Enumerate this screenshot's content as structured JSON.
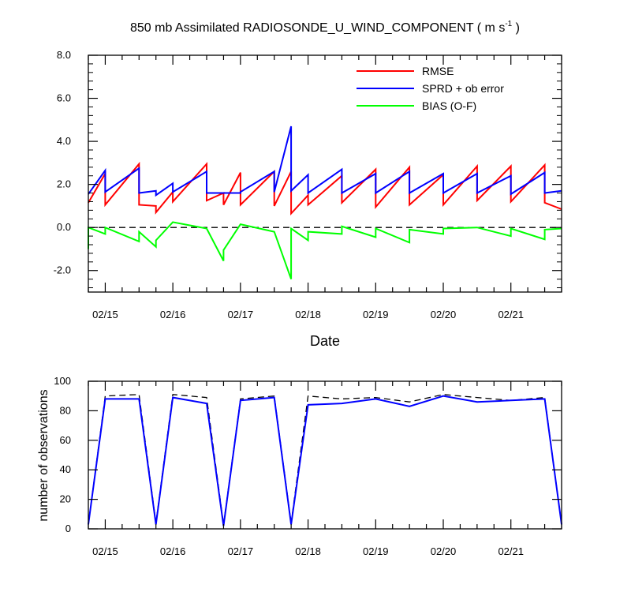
{
  "chart_data": [
    {
      "type": "line",
      "title": "850 mb Assimilated RADIOSONDE_U_WIND_COMPONENT ( m s",
      "title_sup": "-1",
      "title_end": " )",
      "xlabel": "Date",
      "ylabel": "",
      "ylim": [
        -3.0,
        8.0
      ],
      "xlim": [
        0,
        28
      ],
      "yticks": [
        8.0,
        6.0,
        4.0,
        2.0,
        0.0,
        -2.0
      ],
      "ytick_labels": [
        "8.0",
        "6.0",
        "4.0",
        "2.0",
        "0.0",
        "-2.0"
      ],
      "xticks": [
        1,
        5,
        9,
        13,
        17,
        21,
        25
      ],
      "xtick_labels": [
        "02/15",
        "02/16",
        "02/17",
        "02/18",
        "02/19",
        "02/20",
        "02/21"
      ],
      "legend_position": "top-right",
      "zero_line": "dashed",
      "series": [
        {
          "name": "RMSE",
          "color": "#ff0000",
          "x": [
            0,
            1,
            1,
            3,
            3,
            4,
            4,
            5,
            5,
            7,
            7,
            8,
            8,
            9,
            9,
            11,
            11,
            12,
            12,
            13,
            13,
            15,
            15,
            17,
            17,
            19,
            19,
            21,
            21,
            23,
            23,
            25,
            25,
            27,
            27,
            28
          ],
          "y": [
            1.15,
            2.5,
            1.05,
            2.95,
            1.05,
            1.0,
            0.7,
            1.65,
            1.2,
            2.95,
            1.25,
            1.6,
            1.05,
            2.55,
            1.05,
            2.6,
            1.0,
            2.6,
            0.65,
            1.5,
            1.05,
            2.4,
            1.15,
            2.7,
            0.95,
            2.8,
            1.05,
            2.45,
            1.05,
            2.85,
            1.25,
            2.85,
            1.2,
            2.9,
            1.15,
            0.85
          ]
        },
        {
          "name": "SPRD + ob error",
          "color": "#0000ff",
          "x": [
            0,
            1,
            1,
            3,
            3,
            4,
            4,
            5,
            5,
            7,
            7,
            8,
            8,
            9,
            9,
            11,
            11,
            12,
            12,
            13,
            13,
            15,
            15,
            17,
            17,
            19,
            19,
            21,
            21,
            23,
            23,
            25,
            25,
            27,
            27,
            28
          ],
          "y": [
            1.55,
            2.65,
            1.65,
            2.75,
            1.6,
            1.7,
            1.5,
            2.05,
            1.65,
            2.6,
            1.6,
            1.6,
            1.6,
            1.6,
            1.65,
            2.6,
            1.65,
            4.7,
            1.7,
            2.45,
            1.6,
            2.7,
            1.6,
            2.5,
            1.6,
            2.6,
            1.6,
            2.5,
            1.6,
            2.5,
            1.6,
            2.4,
            1.55,
            2.55,
            1.6,
            1.7
          ]
        },
        {
          "name": "BIAS (O-F)",
          "color": "#00ff00",
          "x": [
            0,
            0,
            1,
            1,
            3,
            3,
            4,
            4,
            5,
            7,
            8,
            8,
            9,
            11,
            12,
            12,
            13,
            13,
            15,
            15,
            17,
            17,
            19,
            19,
            21,
            21,
            23,
            23,
            25,
            25,
            27,
            27,
            28
          ],
          "y": [
            -1.0,
            0.0,
            -0.3,
            0.0,
            -0.65,
            -0.2,
            -0.9,
            -0.6,
            0.25,
            -0.05,
            -1.55,
            -1.05,
            0.15,
            -0.2,
            -2.4,
            -0.05,
            -0.6,
            -0.2,
            -0.3,
            0.05,
            -0.45,
            -0.05,
            -0.7,
            -0.1,
            -0.3,
            -0.05,
            0.0,
            0.0,
            -0.4,
            -0.05,
            -0.55,
            -0.1,
            -0.05
          ]
        }
      ]
    },
    {
      "type": "line",
      "title": "",
      "xlabel": "",
      "ylabel": "number of observations",
      "ylim": [
        0,
        100
      ],
      "xlim": [
        0,
        28
      ],
      "yticks": [
        0,
        20,
        40,
        60,
        80,
        100
      ],
      "ytick_labels": [
        "0",
        "20",
        "40",
        "60",
        "80",
        "100"
      ],
      "xticks": [
        1,
        5,
        9,
        13,
        17,
        21,
        25
      ],
      "xtick_labels": [
        "02/15",
        "02/16",
        "02/17",
        "02/18",
        "02/19",
        "02/20",
        "02/21"
      ],
      "series": [
        {
          "color": "#000000",
          "dashed": true,
          "x": [
            0,
            1,
            3,
            4,
            5,
            7,
            8,
            9,
            11,
            12,
            13,
            15,
            17,
            19,
            21,
            23,
            25,
            27,
            28
          ],
          "y": [
            3,
            90,
            91,
            4,
            91,
            89,
            3,
            88,
            90,
            4,
            90,
            88,
            89,
            86,
            91,
            89,
            87,
            89,
            3
          ]
        },
        {
          "color": "#0000ff",
          "x": [
            0,
            1,
            3,
            4,
            5,
            7,
            8,
            9,
            11,
            12,
            13,
            15,
            17,
            19,
            21,
            23,
            25,
            27,
            28
          ],
          "y": [
            3,
            88,
            88,
            3,
            89,
            85,
            2,
            87,
            89,
            3,
            84,
            85,
            88,
            83,
            90,
            86,
            87,
            88,
            3
          ]
        }
      ]
    }
  ]
}
